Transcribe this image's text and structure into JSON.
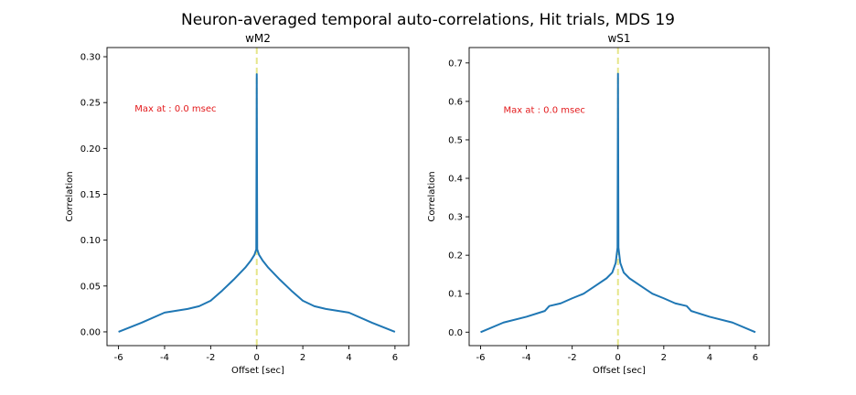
{
  "figure": {
    "title": "Neuron-averaged temporal auto-correlations, Hit trials, MDS 19"
  },
  "chart_data": [
    {
      "type": "line",
      "title": "wM2",
      "xlabel": "Offset [sec]",
      "ylabel": "Correlation",
      "xlim": [
        -6.5,
        6.6
      ],
      "ylim": [
        -0.015,
        0.31
      ],
      "xticks": [
        -6,
        -4,
        -2,
        0,
        2,
        4,
        6
      ],
      "yticks": [
        0.0,
        0.05,
        0.1,
        0.15,
        0.2,
        0.25,
        0.3
      ],
      "ytick_labels": [
        "0.00",
        "0.05",
        "0.10",
        "0.15",
        "0.20",
        "0.25",
        "0.30"
      ],
      "annotation": {
        "text": "Max at : 0.0 msec",
        "x": -5.3,
        "y": 0.24,
        "color": "#e31a1c"
      },
      "vline": {
        "x": 0,
        "color": "#e6e68a",
        "style": "dashed"
      },
      "series": [
        {
          "color": "#1f77b4",
          "x": [
            -6,
            -5,
            -4,
            -3.5,
            -3,
            -2.5,
            -2,
            -1.5,
            -1,
            -0.5,
            -0.25,
            -0.1,
            -0.02,
            0,
            0.02,
            0.1,
            0.25,
            0.5,
            1,
            1.5,
            2,
            2.5,
            3,
            3.5,
            4,
            5,
            6
          ],
          "y": [
            0.0,
            0.01,
            0.021,
            0.023,
            0.025,
            0.028,
            0.034,
            0.045,
            0.057,
            0.07,
            0.078,
            0.084,
            0.09,
            0.281,
            0.09,
            0.084,
            0.078,
            0.07,
            0.057,
            0.045,
            0.034,
            0.028,
            0.025,
            0.023,
            0.021,
            0.01,
            0.0
          ]
        }
      ]
    },
    {
      "type": "line",
      "title": "wS1",
      "xlabel": "Offset [sec]",
      "ylabel": "Correlation",
      "xlim": [
        -6.5,
        6.6
      ],
      "ylim": [
        -0.035,
        0.74
      ],
      "xticks": [
        -6,
        -4,
        -2,
        0,
        2,
        4,
        6
      ],
      "yticks": [
        0.0,
        0.1,
        0.2,
        0.3,
        0.4,
        0.5,
        0.6,
        0.7
      ],
      "ytick_labels": [
        "0.0",
        "0.1",
        "0.2",
        "0.3",
        "0.4",
        "0.5",
        "0.6",
        "0.7"
      ],
      "annotation": {
        "text": "Max at : 0.0 msec",
        "x": -5.0,
        "y": 0.57,
        "color": "#e31a1c"
      },
      "vline": {
        "x": 0,
        "color": "#e6e68a",
        "style": "dashed"
      },
      "series": [
        {
          "color": "#1f77b4",
          "x": [
            -6,
            -5,
            -4,
            -3.2,
            -3,
            -2.5,
            -2,
            -1.5,
            -1,
            -0.5,
            -0.25,
            -0.1,
            -0.02,
            0,
            0.02,
            0.1,
            0.25,
            0.5,
            1,
            1.5,
            2,
            2.5,
            3,
            3.2,
            4,
            5,
            6
          ],
          "y": [
            0.0,
            0.025,
            0.04,
            0.055,
            0.068,
            0.075,
            0.088,
            0.1,
            0.12,
            0.14,
            0.155,
            0.18,
            0.22,
            0.672,
            0.22,
            0.18,
            0.155,
            0.14,
            0.12,
            0.1,
            0.088,
            0.075,
            0.068,
            0.055,
            0.04,
            0.025,
            0.0
          ]
        }
      ]
    }
  ]
}
